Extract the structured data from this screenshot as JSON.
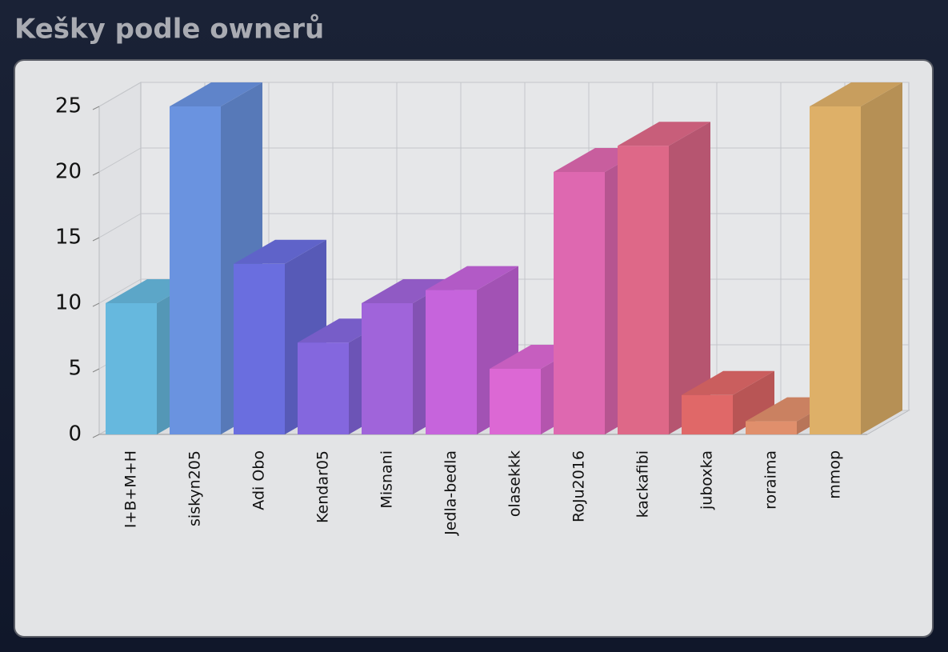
{
  "chart_data": {
    "type": "bar3d",
    "title": "Kešky podle ownerů",
    "categories": [
      "I+B+M+H",
      "siskyn205",
      "Adi Obo",
      "Kendar05",
      "Misnani",
      "Jedla-bedla",
      "olasekkk",
      "RoJu2016",
      "kackafibi",
      "juboxka",
      "roraima",
      "mmop"
    ],
    "values": [
      10,
      25,
      13,
      7,
      10,
      11,
      5,
      20,
      22,
      3,
      1,
      25
    ],
    "colors": [
      "#66b8de",
      "#6a93e0",
      "#6a6edf",
      "#8467de",
      "#a064da",
      "#c664dc",
      "#dc68d4",
      "#de68b0",
      "#de6888",
      "#e06868",
      "#e08f6c",
      "#deb068"
    ],
    "ylim": [
      0,
      25
    ],
    "yticks": [
      0,
      5,
      10,
      15,
      20,
      25
    ],
    "grid": true
  }
}
